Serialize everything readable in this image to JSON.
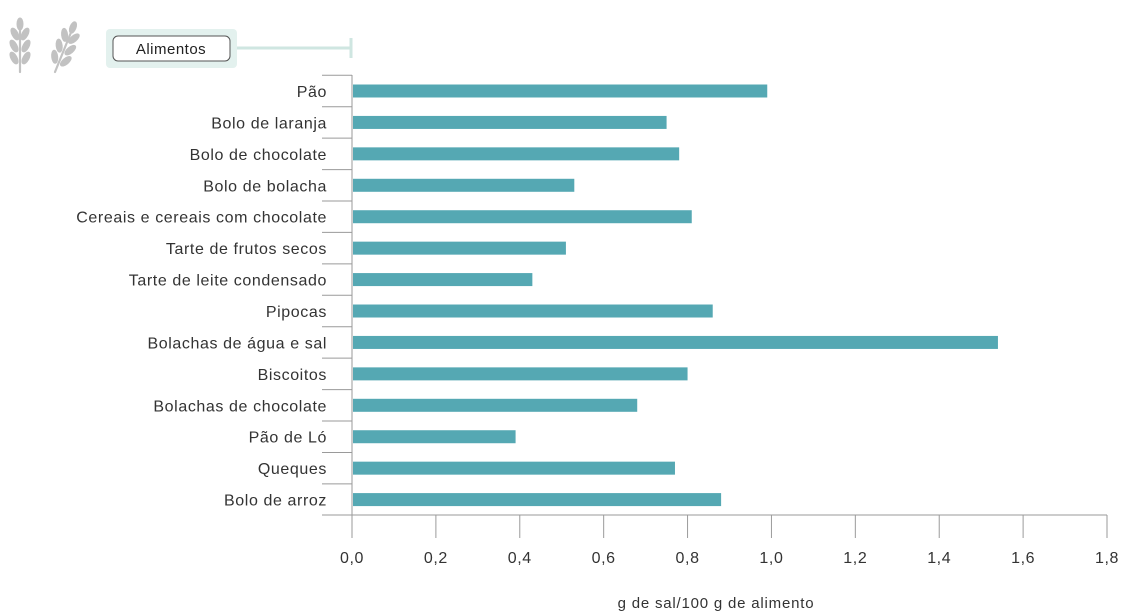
{
  "colors": {
    "bar": "#55a8b3",
    "axis": "#9a9a9a",
    "legend_frame": "#e3f1ee",
    "legend_connector": "#cfe6e1",
    "icon": "#c2c2c2"
  },
  "icon": "wheat-icon",
  "legend_label": "Alimentos",
  "chart_data": {
    "type": "bar",
    "orientation": "horizontal",
    "categories": [
      "Pão",
      "Bolo de laranja",
      "Bolo de chocolate",
      "Bolo de bolacha",
      "Cereais e cereais com chocolate",
      "Tarte de frutos secos",
      "Tarte de leite condensado",
      "Pipocas",
      "Bolachas de água e sal",
      "Biscoitos",
      "Bolachas de chocolate",
      "Pão de Ló",
      "Queques",
      "Bolo de arroz"
    ],
    "values": [
      0.99,
      0.75,
      0.78,
      0.53,
      0.81,
      0.51,
      0.43,
      0.86,
      1.54,
      0.8,
      0.68,
      0.39,
      0.77,
      0.88
    ],
    "xlim": [
      0,
      1.8
    ],
    "xticks": [
      "0,0",
      "0,2",
      "0,4",
      "0,6",
      "0,8",
      "1,0",
      "1,2",
      "1,4",
      "1,6",
      "1,8"
    ],
    "xlabel": "g de sal/100 g de alimento",
    "ylabel": "",
    "title": "",
    "grid": false
  }
}
